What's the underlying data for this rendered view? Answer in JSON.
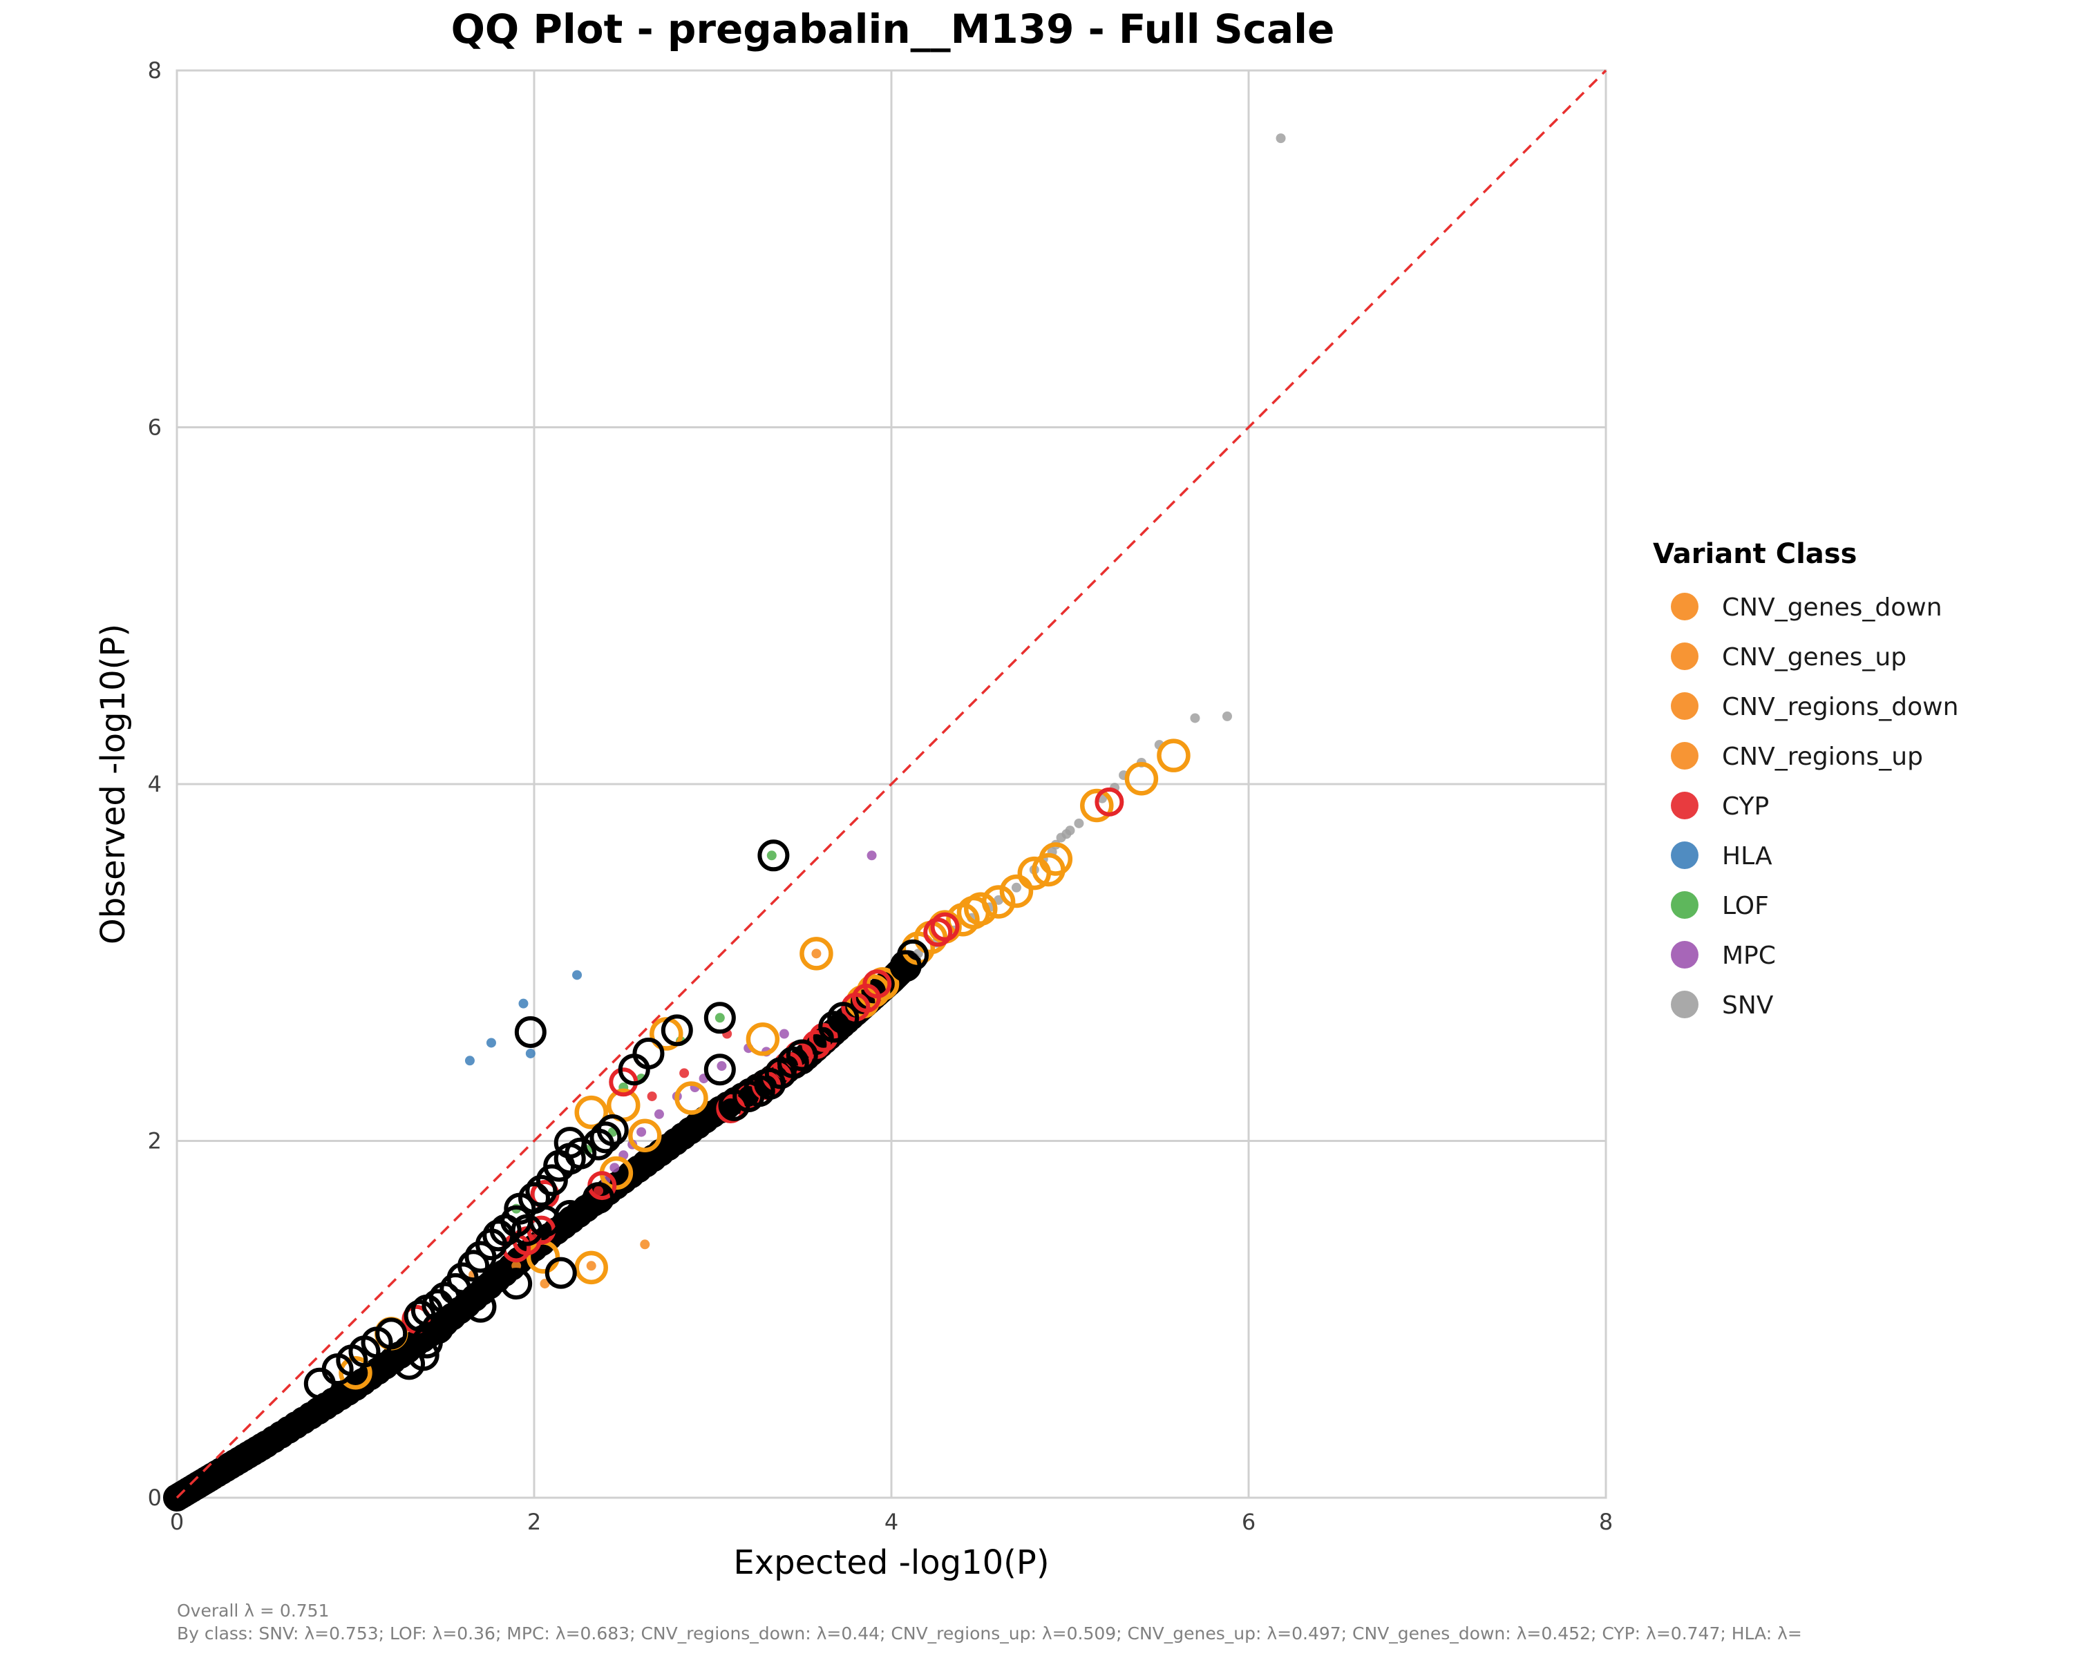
{
  "chart_data": {
    "type": "scatter",
    "title": "QQ Plot - pregabalin__M139 - Full Scale",
    "xlabel": "Expected -log10(P)",
    "ylabel": "Observed -log10(P)",
    "xlim": [
      0,
      8
    ],
    "ylim": [
      0,
      8
    ],
    "xticks": [
      "0",
      "2",
      "4",
      "6",
      "8"
    ],
    "yticks": [
      "0",
      "2",
      "4",
      "6",
      "8"
    ],
    "grid": true,
    "reference_line": {
      "style": "dashed",
      "color": "#e8302f",
      "slope": 1
    },
    "legend": {
      "title": "Variant Class",
      "position": "right",
      "entries": [
        {
          "label": "CNV_genes_down",
          "color": "#f68a1e"
        },
        {
          "label": "CNV_genes_up",
          "color": "#f68a1e"
        },
        {
          "label": "CNV_regions_down",
          "color": "#f68a1e"
        },
        {
          "label": "CNV_regions_up",
          "color": "#f68a1e"
        },
        {
          "label": "CYP",
          "color": "#e5262a"
        },
        {
          "label": "HLA",
          "color": "#3d7fba"
        },
        {
          "label": "LOF",
          "color": "#4daf4a"
        },
        {
          "label": "MPC",
          "color": "#9d55b0"
        },
        {
          "label": "SNV",
          "color": "#a0a0a0"
        }
      ]
    },
    "ring_colors": {
      "orange": "#f59a12",
      "red": "#e5262a",
      "black": "#000000"
    },
    "series": [
      {
        "name": "SNV",
        "color": "#a0a0a0",
        "points": [
          [
            6.18,
            7.62
          ],
          [
            5.88,
            4.38
          ],
          [
            5.7,
            4.37
          ],
          [
            5.5,
            4.22
          ],
          [
            5.4,
            4.12
          ],
          [
            5.3,
            4.05
          ],
          [
            5.25,
            3.98
          ],
          [
            5.18,
            3.92
          ],
          [
            5.05,
            3.78
          ],
          [
            5.0,
            3.74
          ],
          [
            4.98,
            3.72
          ],
          [
            4.95,
            3.7
          ],
          [
            4.92,
            3.66
          ],
          [
            4.9,
            3.62
          ],
          [
            4.85,
            3.58
          ],
          [
            4.8,
            3.52
          ],
          [
            4.7,
            3.42
          ],
          [
            4.6,
            3.35
          ],
          [
            4.55,
            3.31
          ],
          [
            4.45,
            3.25
          ],
          [
            4.35,
            3.18
          ],
          [
            4.25,
            3.11
          ],
          [
            4.15,
            3.05
          ]
        ]
      },
      {
        "name": "HLA",
        "color": "#3d7fba",
        "points": [
          [
            1.64,
            2.45
          ],
          [
            1.76,
            2.55
          ],
          [
            1.94,
            2.77
          ],
          [
            2.24,
            2.93
          ],
          [
            1.98,
            2.49
          ]
        ]
      },
      {
        "name": "LOF",
        "color": "#4daf4a",
        "points": [
          [
            3.33,
            3.6
          ],
          [
            3.04,
            2.69
          ],
          [
            2.82,
            2.56
          ],
          [
            2.6,
            2.35
          ],
          [
            2.5,
            2.3
          ],
          [
            2.44,
            2.05
          ],
          [
            2.3,
            1.95
          ],
          [
            1.9,
            1.62
          ]
        ]
      },
      {
        "name": "MPC",
        "color": "#9d55b0",
        "points": [
          [
            3.89,
            3.6
          ],
          [
            3.4,
            2.6
          ],
          [
            3.3,
            2.5
          ],
          [
            3.2,
            2.52
          ],
          [
            3.05,
            2.42
          ],
          [
            2.95,
            2.35
          ],
          [
            2.9,
            2.3
          ],
          [
            2.8,
            2.25
          ],
          [
            2.7,
            2.15
          ],
          [
            2.6,
            2.05
          ],
          [
            2.55,
            1.98
          ],
          [
            2.5,
            1.92
          ],
          [
            2.45,
            1.85
          ],
          [
            2.4,
            1.78
          ]
        ]
      },
      {
        "name": "CNV",
        "color": "#f68a1e",
        "points": [
          [
            2.62,
            1.42
          ],
          [
            3.58,
            3.05
          ],
          [
            2.32,
            1.3
          ],
          [
            2.06,
            1.2
          ],
          [
            1.9,
            1.3
          ],
          [
            1.66,
            1.25
          ]
        ]
      },
      {
        "name": "CYP",
        "color": "#e5262a",
        "points": [
          [
            3.08,
            2.6
          ],
          [
            2.84,
            2.38
          ],
          [
            2.66,
            2.25
          ],
          [
            2.36,
            1.72
          ],
          [
            2.0,
            1.45
          ]
        ]
      }
    ],
    "main_trend": [
      [
        0.0,
        0.0
      ],
      [
        0.2,
        0.12
      ],
      [
        0.5,
        0.3
      ],
      [
        1.0,
        0.62
      ],
      [
        1.5,
        0.98
      ],
      [
        2.0,
        1.4
      ],
      [
        2.5,
        1.78
      ],
      [
        3.0,
        2.15
      ],
      [
        3.5,
        2.45
      ],
      [
        3.8,
        2.72
      ],
      [
        4.0,
        2.9
      ],
      [
        4.1,
        3.0
      ]
    ],
    "rings": {
      "black": [
        [
          3.34,
          3.6
        ],
        [
          3.04,
          2.69
        ],
        [
          3.04,
          2.4
        ],
        [
          2.8,
          2.62
        ],
        [
          2.64,
          2.49
        ],
        [
          2.56,
          2.4
        ],
        [
          1.98,
          2.61
        ],
        [
          2.44,
          2.06
        ],
        [
          2.4,
          2.02
        ],
        [
          2.36,
          1.98
        ],
        [
          2.2,
          1.99
        ],
        [
          2.26,
          1.93
        ],
        [
          2.2,
          1.9
        ],
        [
          2.14,
          1.86
        ],
        [
          2.1,
          1.78
        ],
        [
          2.04,
          1.72
        ],
        [
          2.0,
          1.68
        ],
        [
          1.92,
          1.62
        ],
        [
          1.9,
          1.55
        ],
        [
          1.84,
          1.5
        ],
        [
          1.8,
          1.47
        ],
        [
          1.76,
          1.42
        ],
        [
          1.7,
          1.35
        ],
        [
          1.66,
          1.3
        ],
        [
          1.6,
          1.23
        ],
        [
          1.56,
          1.17
        ],
        [
          1.5,
          1.12
        ],
        [
          1.46,
          1.08
        ],
        [
          1.4,
          1.05
        ],
        [
          1.36,
          1.02
        ],
        [
          1.2,
          0.92
        ],
        [
          1.12,
          0.87
        ],
        [
          1.05,
          0.82
        ],
        [
          0.98,
          0.77
        ],
        [
          0.9,
          0.72
        ],
        [
          0.8,
          0.64
        ],
        [
          1.9,
          1.2
        ],
        [
          2.15,
          1.26
        ],
        [
          1.7,
          1.07
        ],
        [
          1.46,
          0.95
        ],
        [
          1.4,
          0.87
        ],
        [
          1.38,
          0.8
        ],
        [
          1.3,
          0.75
        ],
        [
          2.36,
          1.68
        ],
        [
          2.2,
          1.58
        ],
        [
          2.06,
          1.55
        ],
        [
          1.96,
          1.5
        ],
        [
          4.08,
          2.98
        ],
        [
          4.12,
          3.04
        ],
        [
          3.73,
          2.69
        ],
        [
          3.68,
          2.64
        ],
        [
          3.5,
          2.48
        ],
        [
          3.45,
          2.44
        ],
        [
          3.38,
          2.38
        ],
        [
          3.32,
          2.32
        ],
        [
          3.26,
          2.28
        ],
        [
          3.2,
          2.25
        ],
        [
          3.12,
          2.2
        ]
      ],
      "orange": [
        [
          2.32,
          2.16
        ],
        [
          2.5,
          2.2
        ],
        [
          2.62,
          2.03
        ],
        [
          2.46,
          1.82
        ],
        [
          2.32,
          1.29
        ],
        [
          2.88,
          2.24
        ],
        [
          3.28,
          2.57
        ],
        [
          3.58,
          3.05
        ],
        [
          2.74,
          2.6
        ],
        [
          5.58,
          4.16
        ],
        [
          5.4,
          4.03
        ],
        [
          5.15,
          3.88
        ],
        [
          4.92,
          3.58
        ],
        [
          4.88,
          3.52
        ],
        [
          4.8,
          3.5
        ],
        [
          4.7,
          3.4
        ],
        [
          4.6,
          3.34
        ],
        [
          4.5,
          3.3
        ],
        [
          4.46,
          3.28
        ],
        [
          4.4,
          3.24
        ],
        [
          4.3,
          3.2
        ],
        [
          4.22,
          3.14
        ],
        [
          4.15,
          3.08
        ],
        [
          3.95,
          2.88
        ],
        [
          3.9,
          2.84
        ],
        [
          3.84,
          2.78
        ],
        [
          1.2,
          0.92
        ],
        [
          2.05,
          1.35
        ],
        [
          1.0,
          0.7
        ]
      ],
      "red": [
        [
          5.22,
          3.9
        ],
        [
          4.26,
          3.17
        ],
        [
          4.3,
          3.2
        ],
        [
          3.92,
          2.88
        ],
        [
          3.86,
          2.8
        ],
        [
          3.8,
          2.75
        ],
        [
          3.62,
          2.58
        ],
        [
          3.58,
          2.54
        ],
        [
          3.48,
          2.48
        ],
        [
          3.42,
          2.42
        ],
        [
          3.36,
          2.36
        ],
        [
          3.3,
          2.31
        ],
        [
          3.2,
          2.25
        ],
        [
          3.1,
          2.18
        ],
        [
          2.5,
          2.33
        ],
        [
          2.38,
          1.75
        ],
        [
          2.06,
          1.7
        ],
        [
          2.04,
          1.5
        ],
        [
          1.96,
          1.44
        ],
        [
          1.9,
          1.4
        ],
        [
          1.34,
          1.0
        ]
      ]
    },
    "annotations": {
      "overall": "Overall λ = 0.751",
      "by_class": "By class: SNV: λ=0.753; LOF: λ=0.36; MPC: λ=0.683; CNV_regions_down: λ=0.44; CNV_regions_up: λ=0.509; CNV_genes_up: λ=0.497; CNV_genes_down: λ=0.452; CYP: λ=0.747; HLA: λ="
    }
  }
}
